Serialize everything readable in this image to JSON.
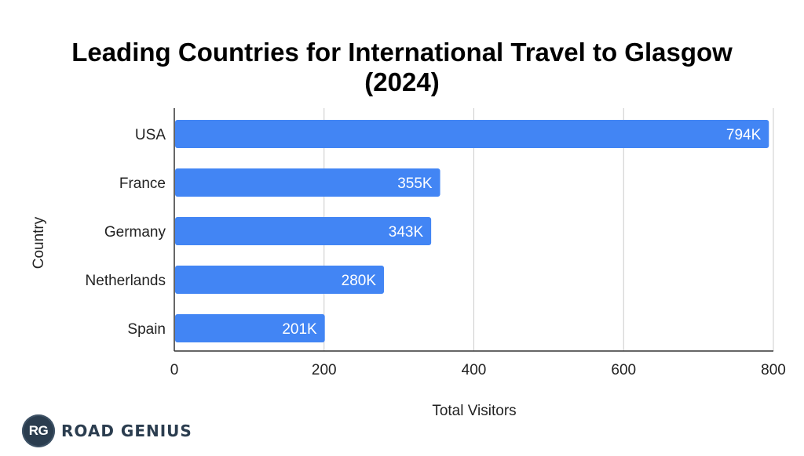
{
  "chart_data": {
    "type": "bar",
    "orientation": "horizontal",
    "title_line1": "Leading Countries for International Travel to Glasgow",
    "title_line2": "(2024)",
    "xlabel": "Total Visitors",
    "ylabel": "Country",
    "categories": [
      "USA",
      "France",
      "Germany",
      "Netherlands",
      "Spain"
    ],
    "values": [
      794,
      355,
      343,
      280,
      201
    ],
    "data_labels": [
      "794K",
      "355K",
      "343K",
      "280K",
      "201K"
    ],
    "x_ticks": [
      "0",
      "200",
      "400",
      "600",
      "800"
    ],
    "xlim": [
      0,
      800
    ],
    "grid": true,
    "legend": "none",
    "bar_color": "#4285f4"
  },
  "branding": {
    "badge": "RG",
    "name": "ROAD GENIUS",
    "color": "#2b3d4f"
  }
}
